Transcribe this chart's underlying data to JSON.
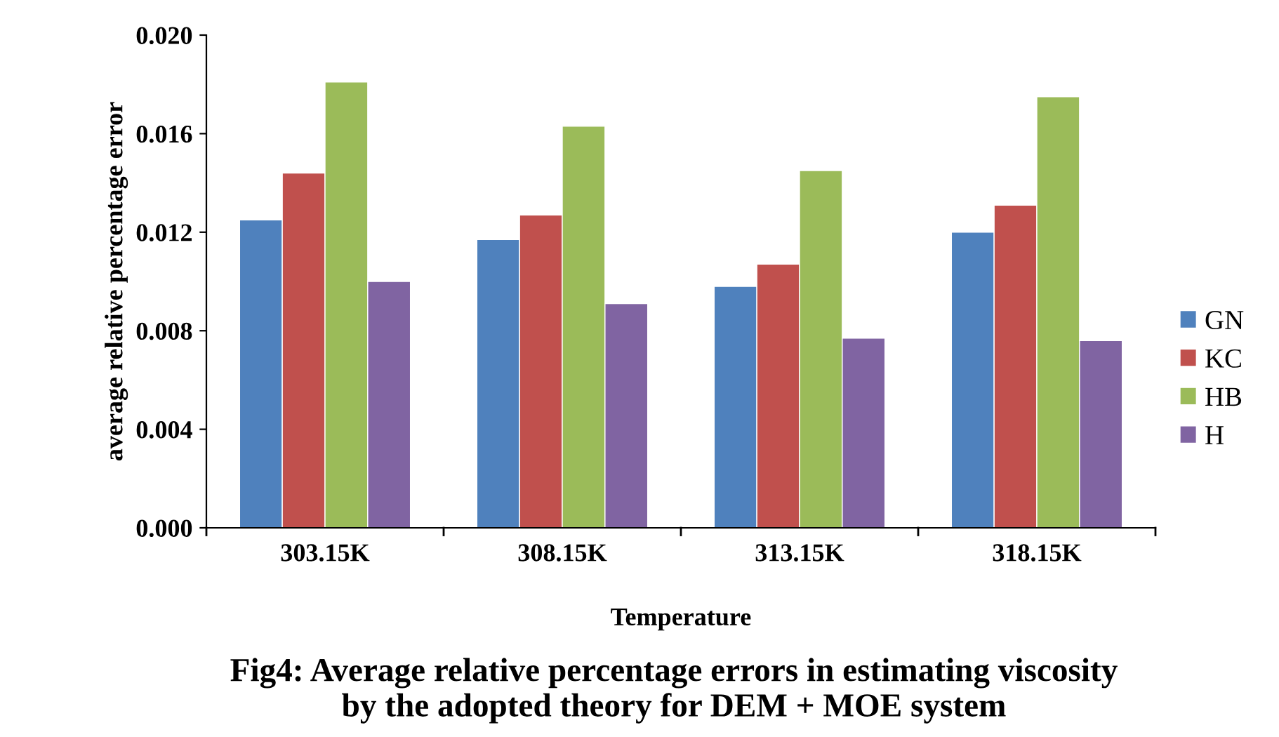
{
  "chart_data": {
    "type": "bar",
    "title": "Fig4: Average relative percentage errors in estimating viscosity\nby the adopted theory for DEM + MOE system",
    "xlabel": "Temperature",
    "ylabel": "average relative percentage error",
    "categories": [
      "303.15K",
      "308.15K",
      "313.15K",
      "318.15K"
    ],
    "series": [
      {
        "name": "GN",
        "color": "#4f81bd",
        "values": [
          0.0125,
          0.0117,
          0.0098,
          0.012
        ]
      },
      {
        "name": "KC",
        "color": "#c0504d",
        "values": [
          0.0144,
          0.0127,
          0.0107,
          0.0131
        ]
      },
      {
        "name": "HB",
        "color": "#9bbb59",
        "values": [
          0.0181,
          0.0163,
          0.0145,
          0.0175
        ]
      },
      {
        "name": "H",
        "color": "#8064a2",
        "values": [
          0.01,
          0.0091,
          0.0077,
          0.0076
        ]
      }
    ],
    "ylim": [
      0,
      0.02
    ],
    "yticks": [
      {
        "value": 0,
        "label": "0.000"
      },
      {
        "value": 0.004,
        "label": "0.004"
      },
      {
        "value": 0.008,
        "label": "0.008"
      },
      {
        "value": 0.012,
        "label": "0.012"
      },
      {
        "value": 0.016,
        "label": "0.016"
      },
      {
        "value": 0.02,
        "label": "0.020"
      }
    ],
    "grid": false,
    "legend": "right"
  }
}
